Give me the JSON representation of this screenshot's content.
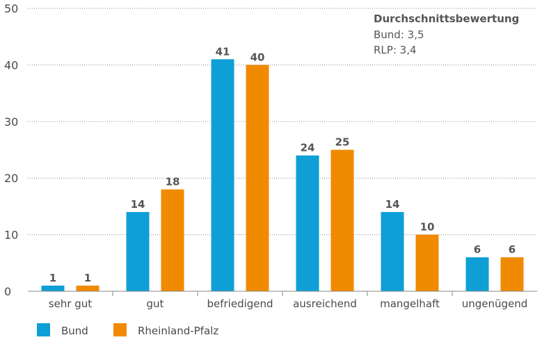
{
  "chart_data": {
    "type": "bar",
    "categories": [
      "sehr gut",
      "gut",
      "befriedigend",
      "ausreichend",
      "mangelhaft",
      "ungenügend"
    ],
    "series": [
      {
        "name": "Bund",
        "values": [
          1,
          14,
          41,
          24,
          14,
          6
        ],
        "color": "#0e9fd6"
      },
      {
        "name": "Rheinland-Pfalz",
        "values": [
          1,
          18,
          40,
          25,
          10,
          6
        ],
        "color": "#f08a00"
      }
    ],
    "ylim": [
      0,
      50
    ],
    "yticks": [
      0,
      10,
      20,
      30,
      40,
      50
    ],
    "grid": true,
    "legend_position": "bottom-left",
    "title": "",
    "xlabel": "",
    "ylabel": "",
    "annotation": {
      "title": "Durchschnittsbewertung",
      "lines": [
        "Bund: 3,5",
        "RLP: 3,4"
      ]
    }
  }
}
